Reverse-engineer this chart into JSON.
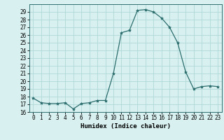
{
  "x": [
    0,
    1,
    2,
    3,
    4,
    5,
    6,
    7,
    8,
    9,
    10,
    11,
    12,
    13,
    14,
    15,
    16,
    17,
    18,
    19,
    20,
    21,
    22,
    23
  ],
  "y": [
    17.8,
    17.2,
    17.1,
    17.1,
    17.2,
    16.4,
    17.1,
    17.2,
    17.5,
    17.5,
    21.0,
    26.3,
    26.6,
    29.2,
    29.3,
    29.0,
    28.2,
    27.0,
    25.0,
    21.2,
    19.0,
    19.3,
    19.4,
    19.3
  ],
  "line_color": "#2d6e6e",
  "marker": "*",
  "marker_size": 3,
  "bg_color": "#d8f0f0",
  "grid_color": "#b0d8d8",
  "xlabel": "Humidex (Indice chaleur)",
  "ylim": [
    16,
    30
  ],
  "xlim": [
    -0.5,
    23.5
  ],
  "yticks": [
    16,
    17,
    18,
    19,
    20,
    21,
    22,
    23,
    24,
    25,
    26,
    27,
    28,
    29
  ],
  "xticks": [
    0,
    1,
    2,
    3,
    4,
    5,
    6,
    7,
    8,
    9,
    10,
    11,
    12,
    13,
    14,
    15,
    16,
    17,
    18,
    19,
    20,
    21,
    22,
    23
  ],
  "tick_fontsize": 5.5,
  "xlabel_fontsize": 6.5
}
